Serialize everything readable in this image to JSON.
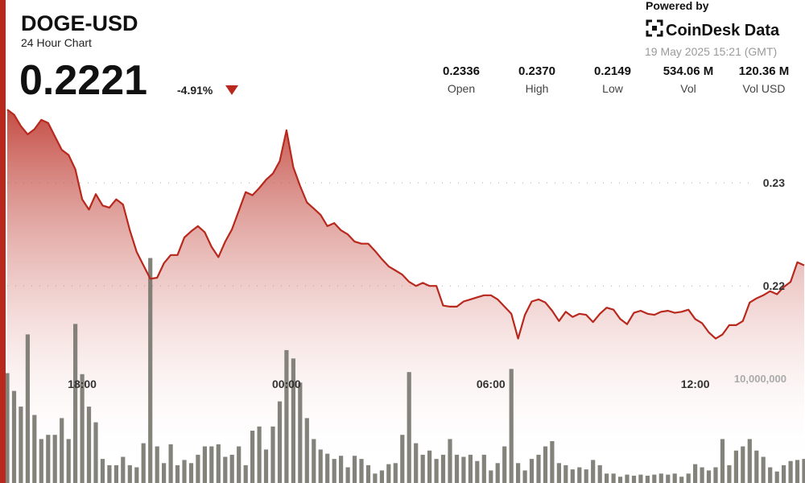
{
  "header": {
    "title": "DOGE-USD",
    "subtitle": "24 Hour Chart",
    "price": "0.2221",
    "change": "-4.91%",
    "powered_by": "Powered by",
    "brand": "CoinDesk Data",
    "timestamp": "19 May 2025 15:21 (GMT)"
  },
  "stats": [
    {
      "value": "0.2336",
      "label": "Open"
    },
    {
      "value": "0.2370",
      "label": "High"
    },
    {
      "value": "0.2149",
      "label": "Low"
    },
    {
      "value": "534.06 M",
      "label": "Vol"
    },
    {
      "value": "120.36 M",
      "label": "Vol USD"
    }
  ],
  "chart_data": {
    "type": "area",
    "x": [
      -8.2,
      -8,
      -7.8,
      -7.6,
      -7.4,
      -7.2,
      -7,
      -6.8,
      -6.6,
      -6.4,
      -6.2,
      -6,
      -5.8,
      -5.6,
      -5.4,
      -5.2,
      -5,
      -4.8,
      -4.6,
      -4.4,
      -4.2,
      -4,
      -3.8,
      -3.6,
      -3.4,
      -3.2,
      -3,
      -2.8,
      -2.6,
      -2.4,
      -2.2,
      -2,
      -1.8,
      -1.6,
      -1.4,
      -1.2,
      -1,
      -0.8,
      -0.6,
      -0.4,
      -0.2,
      0,
      0.2,
      0.4,
      0.6,
      0.8,
      1,
      1.2,
      1.4,
      1.6,
      1.8,
      2,
      2.2,
      2.4,
      2.6,
      2.8,
      3,
      3.2,
      3.4,
      3.6,
      3.8,
      4,
      4.2,
      4.4,
      4.6,
      4.8,
      5,
      5.2,
      5.4,
      5.6,
      5.8,
      6,
      6.2,
      6.4,
      6.6,
      6.8,
      7,
      7.2,
      7.4,
      7.6,
      7.8,
      8,
      8.2,
      8.4,
      8.6,
      8.8,
      9,
      9.2,
      9.4,
      9.6,
      9.8,
      10,
      10.2,
      10.4,
      10.6,
      10.8,
      11,
      11.2,
      11.4,
      11.6,
      11.8,
      12,
      12.2,
      12.4,
      12.6,
      12.8,
      13,
      13.2,
      13.4,
      13.6,
      13.8,
      14,
      14.2,
      14.4,
      14.6,
      14.8,
      15,
      15.2
    ],
    "xlim": [
      -8.2,
      15.2
    ],
    "xticks": [
      {
        "value": -6,
        "label": "18:00"
      },
      {
        "value": 0,
        "label": "00:00"
      },
      {
        "value": 6,
        "label": "06:00"
      },
      {
        "value": 12,
        "label": "12:00"
      }
    ],
    "ylim": [
      0.2009,
      0.2375
    ],
    "yticks": [
      0.22,
      0.23
    ],
    "y2lim": [
      0,
      25000000
    ],
    "y2ticks": [
      {
        "value": 10000000,
        "label": "10,000,000"
      }
    ],
    "grid": true,
    "series": [
      {
        "type": "area",
        "color": "#b8281d",
        "values": [
          0.2371,
          0.2366,
          0.2355,
          0.2347,
          0.2352,
          0.2361,
          0.2358,
          0.2345,
          0.2332,
          0.2327,
          0.2313,
          0.2284,
          0.2274,
          0.2289,
          0.2278,
          0.2276,
          0.2284,
          0.2279,
          0.2254,
          0.2233,
          0.222,
          0.2207,
          0.2208,
          0.2222,
          0.223,
          0.223,
          0.2247,
          0.2253,
          0.2258,
          0.2252,
          0.2238,
          0.2228,
          0.2243,
          0.2255,
          0.2273,
          0.2291,
          0.2288,
          0.2295,
          0.2303,
          0.2309,
          0.2321,
          0.2351,
          0.2315,
          0.2297,
          0.2281,
          0.2275,
          0.2269,
          0.2258,
          0.2261,
          0.2254,
          0.225,
          0.2243,
          0.2241,
          0.2241,
          0.2234,
          0.2226,
          0.2219,
          0.2215,
          0.2211,
          0.2204,
          0.22,
          0.2203,
          0.22,
          0.22,
          0.2181,
          0.218,
          0.218,
          0.2185,
          0.2187,
          0.2189,
          0.2191,
          0.2191,
          0.2187,
          0.218,
          0.2173,
          0.2149,
          0.2172,
          0.2185,
          0.2187,
          0.2184,
          0.2176,
          0.2166,
          0.2175,
          0.217,
          0.2173,
          0.2172,
          0.2165,
          0.2173,
          0.2179,
          0.2177,
          0.2168,
          0.2163,
          0.2174,
          0.2176,
          0.2173,
          0.2172,
          0.2175,
          0.2176,
          0.2174,
          0.2175,
          0.2177,
          0.2168,
          0.2164,
          0.2155,
          0.2149,
          0.2153,
          0.2162,
          0.2162,
          0.2166,
          0.2184,
          0.2188,
          0.2191,
          0.2195,
          0.2192,
          0.2199,
          0.2204,
          0.2223,
          0.222
        ]
      },
      {
        "type": "bar",
        "axis": "y2",
        "color": "#76766e",
        "values": [
          10500000,
          8800000,
          7300000,
          14200000,
          6500000,
          4200000,
          4600000,
          4600000,
          6200000,
          4200000,
          15200000,
          10400000,
          7300000,
          5800000,
          2300000,
          1700000,
          1700000,
          2500000,
          1700000,
          1500000,
          3800000,
          21500000,
          3500000,
          1900000,
          3700000,
          1700000,
          2200000,
          1900000,
          2700000,
          3500000,
          3500000,
          3700000,
          2500000,
          2700000,
          3500000,
          1700000,
          5000000,
          5400000,
          3200000,
          5400000,
          7800000,
          12700000,
          11900000,
          9600000,
          6200000,
          4200000,
          3200000,
          2800000,
          2300000,
          2600000,
          1500000,
          2600000,
          2300000,
          1700000,
          900000,
          1200000,
          1800000,
          1900000,
          4600000,
          10600000,
          3800000,
          2700000,
          3100000,
          2300000,
          2700000,
          4200000,
          2700000,
          2500000,
          2700000,
          2100000,
          2700000,
          1200000,
          1900000,
          3500000,
          10900000,
          1900000,
          1200000,
          2300000,
          2700000,
          3500000,
          4000000,
          1900000,
          1700000,
          1300000,
          1500000,
          1300000,
          2200000,
          1700000,
          900000,
          900000,
          600000,
          800000,
          700000,
          800000,
          700000,
          800000,
          900000,
          800000,
          900000,
          600000,
          900000,
          1800000,
          1500000,
          1200000,
          1500000,
          4200000,
          1700000,
          3100000,
          3500000,
          4200000,
          3100000,
          2500000,
          1500000,
          1100000,
          1700000,
          2100000,
          2200000,
          2300000
        ]
      }
    ]
  }
}
